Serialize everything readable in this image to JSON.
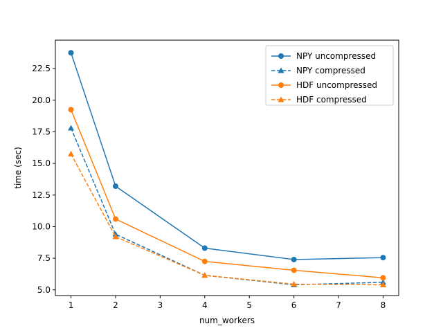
{
  "chart_data": {
    "type": "line",
    "title": "",
    "xlabel": "num_workers",
    "ylabel": "time (sec)",
    "x": [
      1,
      2,
      4,
      6,
      8
    ],
    "xlim": [
      0.65,
      8.35
    ],
    "ylim": [
      4.55,
      24.75
    ],
    "xticks": [
      1,
      2,
      3,
      4,
      5,
      6,
      7,
      8
    ],
    "yticks": [
      5.0,
      7.5,
      10.0,
      12.5,
      15.0,
      17.5,
      20.0,
      22.5
    ],
    "ytick_labels": [
      "5.0",
      "7.5",
      "10.0",
      "12.5",
      "15.0",
      "17.5",
      "20.0",
      "22.5"
    ],
    "grid": false,
    "legend_position": "top-right",
    "series": [
      {
        "name": "NPY uncompressed",
        "color": "#1f77b4",
        "linestyle": "solid",
        "marker": "circle",
        "values": [
          23.75,
          13.2,
          8.3,
          7.4,
          7.55
        ]
      },
      {
        "name": "NPY compressed",
        "color": "#1f77b4",
        "linestyle": "dashed",
        "marker": "triangle",
        "values": [
          17.8,
          9.4,
          6.15,
          5.4,
          5.6
        ]
      },
      {
        "name": "HDF uncompressed",
        "color": "#ff7f0e",
        "linestyle": "solid",
        "marker": "circle",
        "values": [
          19.25,
          10.6,
          7.25,
          6.55,
          5.95
        ]
      },
      {
        "name": "HDF compressed",
        "color": "#ff7f0e",
        "linestyle": "dashed",
        "marker": "triangle",
        "values": [
          15.75,
          9.2,
          6.15,
          5.45,
          5.4
        ]
      }
    ]
  }
}
